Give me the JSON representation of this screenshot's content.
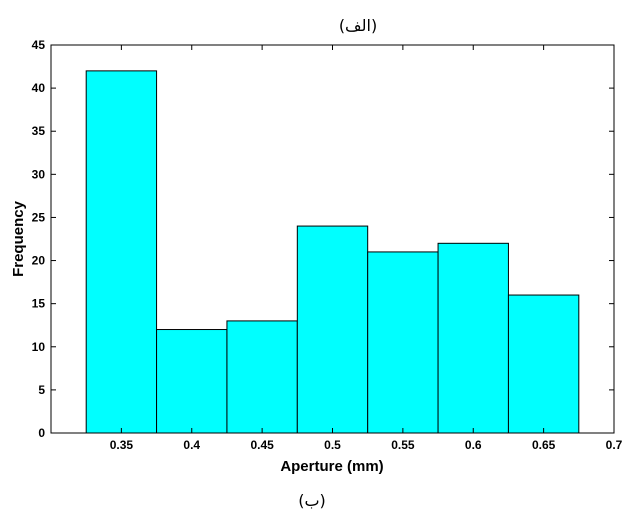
{
  "top_caption": "(الف)",
  "bottom_caption": "(ب)",
  "chart_data": {
    "type": "bar",
    "x": [
      0.35,
      0.4,
      0.45,
      0.5,
      0.55,
      0.6,
      0.65
    ],
    "bin_width": 0.05,
    "values": [
      42,
      12,
      13,
      24,
      21,
      22,
      16
    ],
    "xlabel": "Aperture (mm)",
    "ylabel": "Frequency",
    "xlim": [
      0.3,
      0.7
    ],
    "ylim": [
      0,
      45
    ],
    "xticks": [
      "0.35",
      "0.4",
      "0.45",
      "0.5",
      "0.55",
      "0.6",
      "0.65",
      "0.7"
    ],
    "yticks": [
      "0",
      "5",
      "10",
      "15",
      "20",
      "25",
      "30",
      "35",
      "40",
      "45"
    ],
    "bar_color": "#00ffff",
    "edge_color": "#000000",
    "grid": false,
    "legend": false
  }
}
